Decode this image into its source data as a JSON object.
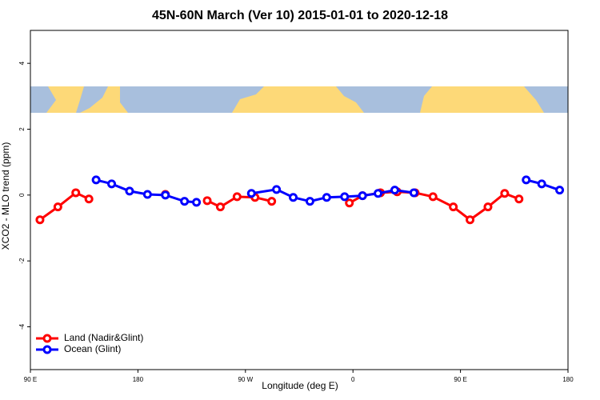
{
  "chart_data": {
    "type": "line",
    "title": "45N-60N March (Ver 10)   2015-01-01 to 2020-12-18",
    "x_label": "Longitude (deg E)",
    "y_label": "XCO2 - MLO trend (ppm)",
    "xlim": [
      90,
      540
    ],
    "ylim": [
      -5.3,
      5
    ],
    "xticks": [
      {
        "value": 90,
        "label": "90 E"
      },
      180,
      {
        "value": 270,
        "label": "90 W"
      },
      {
        "value": 360,
        "label": "0"
      },
      {
        "value": 450,
        "label": "90 E"
      },
      {
        "value": 540,
        "label": "180"
      }
    ],
    "yticks": [
      -4,
      -2,
      0,
      2,
      4
    ],
    "legend": "bottom-left",
    "series": [
      {
        "name": "Land (Nadir&Glint)",
        "color": "#ff0000",
        "x": [
          98,
          113,
          128,
          139,
          null,
          203,
          null,
          238,
          249,
          263,
          278,
          292,
          null,
          357,
          368,
          383,
          397,
          412,
          427,
          444,
          458,
          473,
          487,
          499
        ],
        "values": [
          -0.75,
          -0.36,
          0.07,
          -0.12,
          null,
          0.02,
          null,
          -0.17,
          -0.36,
          -0.05,
          -0.07,
          -0.19,
          null,
          -0.24,
          -0.02,
          0.07,
          0.1,
          0.07,
          -0.05,
          -0.36,
          -0.75,
          -0.36,
          0.05,
          -0.12
        ]
      },
      {
        "name": "Ocean (Glint)",
        "color": "#0000ff",
        "x": [
          145,
          158,
          173,
          188,
          203,
          219,
          229,
          null,
          275,
          296,
          310,
          324,
          338,
          353,
          368,
          381,
          395,
          411,
          null,
          505,
          518,
          533
        ],
        "values": [
          0.46,
          0.34,
          0.12,
          0.02,
          0.0,
          -0.19,
          -0.22,
          null,
          0.05,
          0.17,
          -0.07,
          -0.19,
          -0.07,
          -0.05,
          -0.02,
          0.05,
          0.15,
          0.07,
          null,
          0.46,
          0.34,
          0.15
        ]
      }
    ]
  }
}
